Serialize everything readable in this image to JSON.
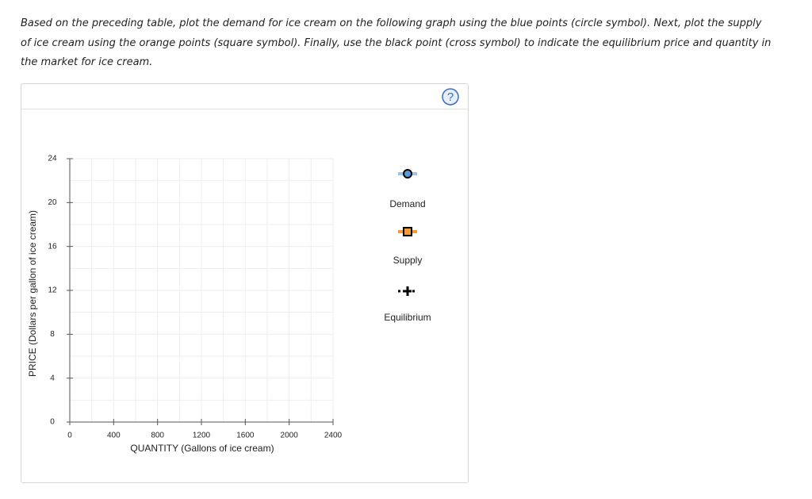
{
  "instructions": "Based on the preceding table, plot the demand for ice cream on the following graph using the blue points (circle symbol). Next, plot the supply of ice cream using the orange points (square symbol). Finally, use the black point (cross symbol) to indicate the equilibrium price and quantity in the market for ice cream.",
  "help_icon": "?",
  "chart_data": {
    "type": "scatter",
    "xlabel": "QUANTITY (Gallons of ice cream)",
    "ylabel": "PRICE (Dollars per gallon of ice cream)",
    "xlim": [
      0,
      2400
    ],
    "ylim": [
      0,
      24
    ],
    "xticks": [
      0,
      400,
      800,
      1200,
      1600,
      2000,
      2400
    ],
    "yticks": [
      0,
      4,
      8,
      12,
      16,
      20,
      24
    ],
    "xgrid": [
      0,
      200,
      400,
      600,
      800,
      1000,
      1200,
      1400,
      1600,
      1800,
      2000,
      2200,
      2400
    ],
    "ygrid": [
      0,
      2,
      4,
      6,
      8,
      10,
      12,
      14,
      16,
      18,
      20,
      22,
      24
    ],
    "grid": true,
    "series": [
      {
        "name": "Demand",
        "color": "#5b9bd5",
        "marker": "circle",
        "x": [],
        "values": []
      },
      {
        "name": "Supply",
        "color": "#f29b38",
        "marker": "square",
        "x": [],
        "values": []
      },
      {
        "name": "Equilibrium",
        "color": "#000000",
        "marker": "cross",
        "x": [],
        "values": []
      }
    ]
  }
}
